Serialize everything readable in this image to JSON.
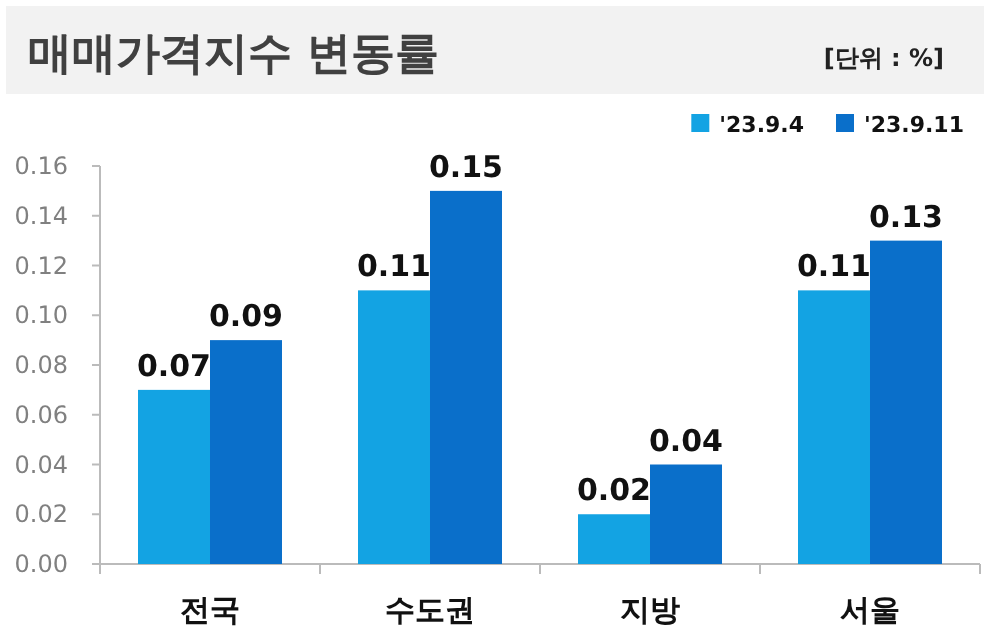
{
  "chart_data": {
    "type": "bar",
    "title": "매매가격지수 변동률",
    "annotations": [
      "[단위 : %]"
    ],
    "categories": [
      "전국",
      "수도권",
      "지방",
      "서울"
    ],
    "series": [
      {
        "name": "'23.9.4",
        "color": "#13a3e3",
        "values": [
          0.07,
          0.11,
          0.02,
          0.11
        ]
      },
      {
        "name": "'23.9.11",
        "color": "#0a6fca",
        "values": [
          0.09,
          0.15,
          0.04,
          0.13
        ]
      }
    ],
    "ylim": [
      0,
      0.16
    ],
    "yticks": [
      {
        "value": 0,
        "label": "0.00"
      },
      {
        "value": 0.02,
        "label": "0.02"
      },
      {
        "value": 0.04,
        "label": "0.04"
      },
      {
        "value": 0.06,
        "label": "0.06"
      },
      {
        "value": 0.08,
        "label": "0.08"
      },
      {
        "value": 0.1,
        "label": "0.10"
      },
      {
        "value": 0.12,
        "label": "0.12"
      },
      {
        "value": 0.14,
        "label": "0.14"
      },
      {
        "value": 0.16,
        "label": "0.16"
      }
    ],
    "data_labels": true,
    "legend": "top right",
    "grid": false
  }
}
